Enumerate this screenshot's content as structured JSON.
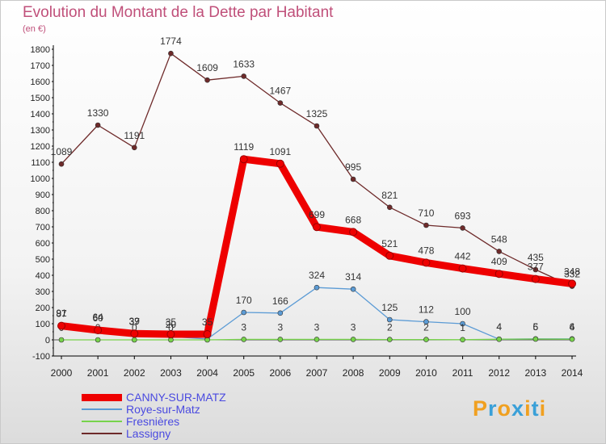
{
  "chart_data": {
    "type": "line",
    "title": "Evolution du Montant de la Dette par Habitant",
    "subtitle": "(en €)",
    "x": [
      "2000",
      "2001",
      "2002",
      "2003",
      "2004",
      "2005",
      "2006",
      "2007",
      "2008",
      "2009",
      "2010",
      "2011",
      "2012",
      "2013",
      "2014"
    ],
    "ylim": [
      -100,
      1800
    ],
    "yticks": [
      -100,
      0,
      100,
      200,
      300,
      400,
      500,
      600,
      700,
      800,
      900,
      1000,
      1100,
      1200,
      1300,
      1400,
      1500,
      1600,
      1700,
      1800
    ],
    "grid": false,
    "legend_position": "bottom-left",
    "series": [
      {
        "name": "CANNY-SUR-MATZ",
        "color": "#ee0000",
        "values": [
          87,
          60,
          39,
          35,
          35,
          1119,
          1091,
          699,
          668,
          521,
          478,
          442,
          409,
          377,
          348
        ]
      },
      {
        "name": "Roye-sur-Matz",
        "color": "#5b9bd5",
        "values": [
          91,
          64,
          37,
          20,
          5,
          170,
          166,
          324,
          314,
          125,
          112,
          100,
          4,
          6,
          6
        ]
      },
      {
        "name": "Fresnières",
        "color": "#77d34b",
        "values": [
          0,
          0,
          0,
          0,
          0,
          3,
          3,
          3,
          3,
          2,
          2,
          1,
          4,
          5,
          4
        ]
      },
      {
        "name": "Lassigny",
        "color": "#6e2a2a",
        "values": [
          1089,
          1330,
          1191,
          1774,
          1609,
          1633,
          1467,
          1325,
          995,
          821,
          710,
          693,
          548,
          435,
          332
        ]
      }
    ]
  },
  "logo": {
    "letters": [
      "P",
      "r",
      "o",
      "x",
      "i",
      "t",
      "i"
    ],
    "colors": [
      "#f0a020",
      "#3aa0d8",
      "#f0a020",
      "#3aa0d8",
      "#f0a020",
      "#3aa0d8",
      "#f0a020"
    ]
  }
}
